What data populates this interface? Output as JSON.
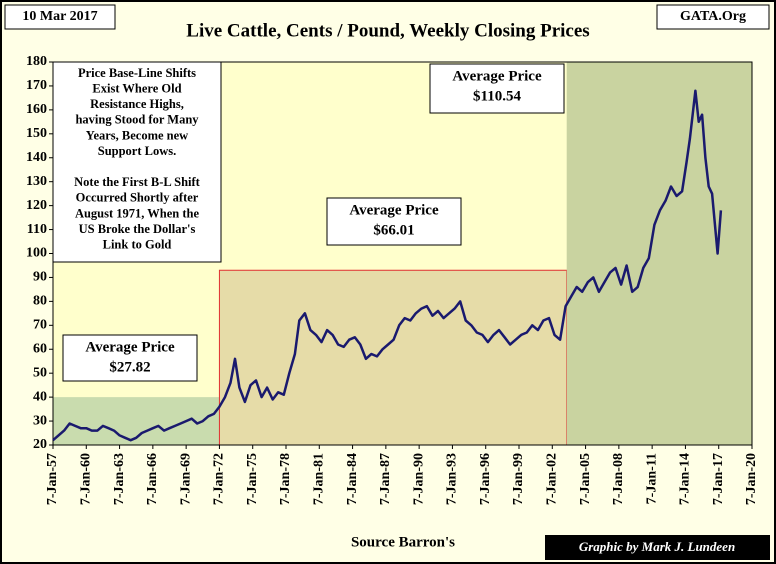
{
  "chart_data": {
    "type": "line",
    "title": "Live Cattle, Cents / Pound, Weekly Closing Prices",
    "date_label": "10 Mar 2017",
    "source_label": "GATA.Org",
    "x_axis_label": "Source Barron's",
    "credit": "Graphic by Mark J. Lundeen",
    "note": [
      "Price Base-Line Shifts",
      "Exist Where Old",
      "Resistance Highs,",
      "having Stood for Many",
      "Years, Become new",
      "Support Lows.",
      "",
      "Note the First B-L Shift",
      "Occurred Shortly after",
      "August 1971, When the",
      "US Broke the Dollar's",
      "Link to Gold"
    ],
    "regions": [
      {
        "x0": 1957,
        "x1": 1972,
        "y0": 20,
        "y1": 40,
        "color": "#c9dcae",
        "label": [
          "Average Price",
          "$27.82"
        ]
      },
      {
        "x0": 1972,
        "x1": 2003.3,
        "y0": 20,
        "y1": 93,
        "color": "#e6dca8",
        "border": "#e03030",
        "label": [
          "Average Price",
          "$66.01"
        ]
      },
      {
        "x0": 2003.3,
        "x1": 2020,
        "y0": 20,
        "y1": 180,
        "color": "#c9d3a0",
        "label": [
          "Average Price",
          "$110.54"
        ]
      }
    ],
    "x": [
      1957,
      1957.5,
      1958,
      1958.5,
      1959,
      1959.5,
      1960,
      1960.5,
      1961,
      1961.5,
      1962,
      1962.5,
      1963,
      1963.5,
      1964,
      1964.5,
      1965,
      1965.5,
      1966,
      1966.5,
      1967,
      1967.5,
      1968,
      1968.5,
      1969,
      1969.5,
      1970,
      1970.5,
      1971,
      1971.5,
      1972,
      1972.5,
      1973,
      1973.4,
      1973.8,
      1974.3,
      1974.8,
      1975.3,
      1975.8,
      1976.3,
      1976.8,
      1977.3,
      1977.8,
      1978.3,
      1978.8,
      1979.2,
      1979.7,
      1980.2,
      1980.7,
      1981.2,
      1981.7,
      1982.2,
      1982.7,
      1983.2,
      1983.7,
      1984.2,
      1984.7,
      1985.2,
      1985.7,
      1986.2,
      1986.7,
      1987.2,
      1987.7,
      1988.2,
      1988.7,
      1989.2,
      1989.7,
      1990.2,
      1990.7,
      1991.2,
      1991.7,
      1992.2,
      1992.7,
      1993.2,
      1993.7,
      1994.2,
      1994.7,
      1995.2,
      1995.7,
      1996.2,
      1996.7,
      1997.2,
      1997.7,
      1998.2,
      1998.7,
      1999.2,
      1999.7,
      2000.2,
      2000.7,
      2001.2,
      2001.7,
      2002.2,
      2002.7,
      2003.2,
      2003.7,
      2004.2,
      2004.7,
      2005.2,
      2005.7,
      2006.2,
      2006.7,
      2007.2,
      2007.7,
      2008.2,
      2008.7,
      2009.2,
      2009.7,
      2010.2,
      2010.7,
      2011.2,
      2011.7,
      2012.2,
      2012.7,
      2013.2,
      2013.7,
      2014.1,
      2014.4,
      2014.7,
      2014.9,
      2015.2,
      2015.5,
      2015.8,
      2016.1,
      2016.4,
      2016.7,
      2016.9,
      2017.2
    ],
    "series": [
      {
        "name": "Live Cattle",
        "color": "#1a1a6e",
        "values": [
          22,
          24,
          26,
          29,
          28,
          27,
          27,
          26,
          26,
          28,
          27,
          26,
          24,
          23,
          22,
          23,
          25,
          26,
          27,
          28,
          26,
          27,
          28,
          29,
          30,
          31,
          29,
          30,
          32,
          33,
          36,
          40,
          46,
          56,
          44,
          38,
          45,
          47,
          40,
          44,
          39,
          42,
          41,
          50,
          58,
          72,
          75,
          68,
          66,
          63,
          68,
          66,
          62,
          61,
          64,
          65,
          62,
          56,
          58,
          57,
          60,
          62,
          64,
          70,
          73,
          72,
          75,
          77,
          78,
          74,
          76,
          73,
          75,
          77,
          80,
          72,
          70,
          67,
          66,
          63,
          66,
          68,
          65,
          62,
          64,
          66,
          67,
          70,
          68,
          72,
          73,
          66,
          64,
          78,
          82,
          86,
          84,
          88,
          90,
          84,
          88,
          92,
          94,
          87,
          95,
          84,
          86,
          94,
          98,
          112,
          118,
          122,
          128,
          124,
          126,
          138,
          148,
          160,
          168,
          155,
          158,
          140,
          128,
          125,
          110,
          100,
          118
        ]
      }
    ],
    "xlim": [
      1957,
      2020
    ],
    "ylim": [
      20,
      180
    ],
    "yticks": [
      20,
      30,
      40,
      50,
      60,
      70,
      80,
      90,
      100,
      110,
      120,
      130,
      140,
      150,
      160,
      170,
      180
    ],
    "xticks": [
      {
        "value": 1957,
        "label": "7-Jan-57"
      },
      {
        "value": 1960,
        "label": "7-Jan-60"
      },
      {
        "value": 1963,
        "label": "7-Jan-63"
      },
      {
        "value": 1966,
        "label": "7-Jan-66"
      },
      {
        "value": 1969,
        "label": "7-Jan-69"
      },
      {
        "value": 1972,
        "label": "7-Jan-72"
      },
      {
        "value": 1975,
        "label": "7-Jan-75"
      },
      {
        "value": 1978,
        "label": "7-Jan-78"
      },
      {
        "value": 1981,
        "label": "7-Jan-81"
      },
      {
        "value": 1984,
        "label": "7-Jan-84"
      },
      {
        "value": 1987,
        "label": "7-Jan-87"
      },
      {
        "value": 1990,
        "label": "7-Jan-90"
      },
      {
        "value": 1993,
        "label": "7-Jan-93"
      },
      {
        "value": 1996,
        "label": "7-Jan-96"
      },
      {
        "value": 1999,
        "label": "7-Jan-99"
      },
      {
        "value": 2002,
        "label": "7-Jan-02"
      },
      {
        "value": 2005,
        "label": "7-Jan-05"
      },
      {
        "value": 2008,
        "label": "7-Jan-08"
      },
      {
        "value": 2011,
        "label": "7-Jan-11"
      },
      {
        "value": 2014,
        "label": "7-Jan-14"
      },
      {
        "value": 2017,
        "label": "7-Jan-17"
      },
      {
        "value": 2020,
        "label": "7-Jan-20"
      }
    ]
  }
}
